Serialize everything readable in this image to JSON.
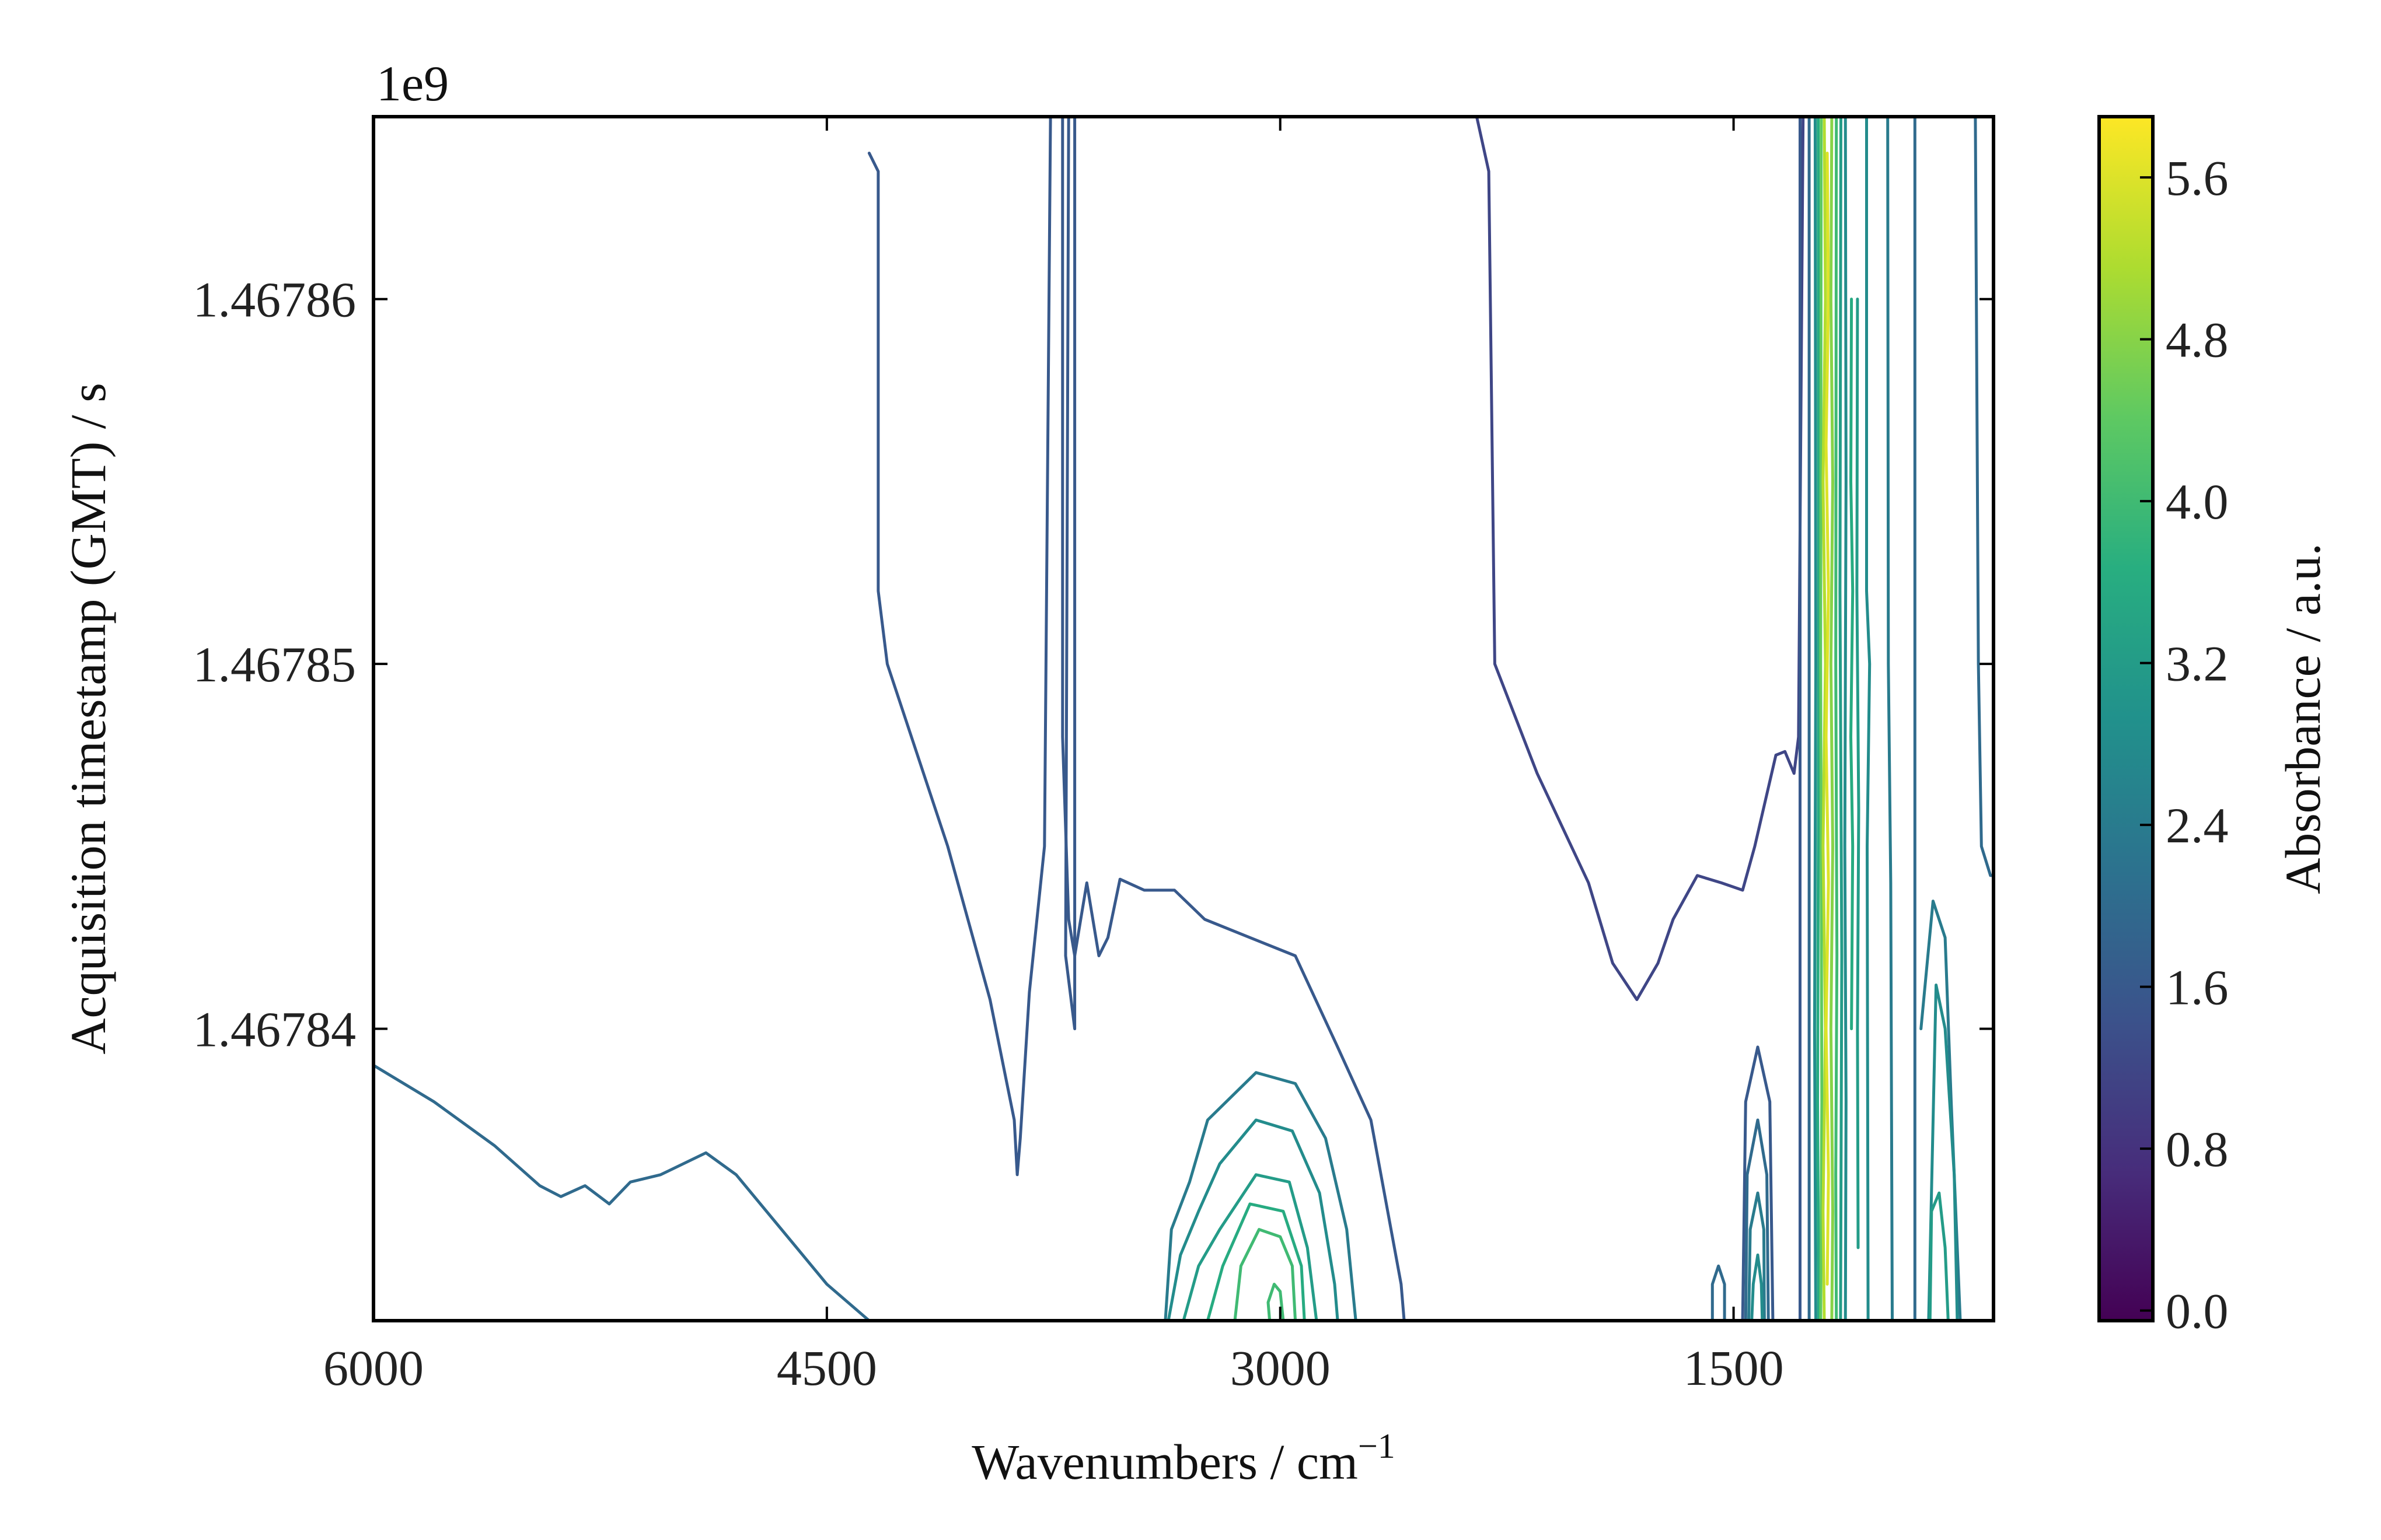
{
  "chart_data": {
    "type": "contour",
    "title": "",
    "xlabel": "Wavenumbers / cm",
    "xlabel_superscript": "−1",
    "ylabel": "Acquisition timestamp (GMT) / s",
    "y_offset_text": "1e9",
    "xlim": [
      6000,
      640
    ],
    "ylim": [
      1.467832,
      1.467865
    ],
    "x_ticks": [
      {
        "value": 6000,
        "label": "6000"
      },
      {
        "value": 4500,
        "label": "4500"
      },
      {
        "value": 3000,
        "label": "3000"
      },
      {
        "value": 1500,
        "label": "1500"
      }
    ],
    "y_ticks": [
      {
        "value": 1.46784,
        "label": "1.46784"
      },
      {
        "value": 1.46785,
        "label": "1.46785"
      },
      {
        "value": 1.46786,
        "label": "1.46786"
      }
    ],
    "colorbar": {
      "label": "Absorbance / a.u.",
      "colormap": "viridis",
      "range": [
        -0.05,
        5.9
      ],
      "ticks": [
        {
          "value": 0.0,
          "label": "0.0"
        },
        {
          "value": 0.8,
          "label": "0.8"
        },
        {
          "value": 1.6,
          "label": "1.6"
        },
        {
          "value": 2.4,
          "label": "2.4"
        },
        {
          "value": 3.2,
          "label": "3.2"
        },
        {
          "value": 4.0,
          "label": "4.0"
        },
        {
          "value": 4.8,
          "label": "4.8"
        },
        {
          "value": 5.6,
          "label": "5.6"
        }
      ]
    },
    "contours": [
      {
        "level": 2.0,
        "points": [
          [
            6000,
            1.467839
          ],
          [
            5800,
            1.467838
          ],
          [
            5600,
            1.4678368
          ],
          [
            5450,
            1.4678357
          ],
          [
            5380,
            1.4678354
          ],
          [
            5300,
            1.4678357
          ],
          [
            5220,
            1.4678352
          ],
          [
            5150,
            1.4678358
          ],
          [
            5050,
            1.467836
          ],
          [
            4900,
            1.4678366
          ],
          [
            4800,
            1.467836
          ],
          [
            4700,
            1.467835
          ],
          [
            4600,
            1.467834
          ],
          [
            4500,
            1.467833
          ],
          [
            4360,
            1.467832
          ]
        ]
      },
      {
        "level": 1.6,
        "points": [
          [
            4360,
            1.467864
          ],
          [
            4330,
            1.4678635
          ],
          [
            4330,
            1.467852
          ],
          [
            4300,
            1.46785
          ],
          [
            4100,
            1.467845
          ],
          [
            3960,
            1.4678408
          ],
          [
            3880,
            1.4678375
          ],
          [
            3870,
            1.467836
          ],
          [
            3860,
            1.467837
          ],
          [
            3830,
            1.467841
          ],
          [
            3780,
            1.467845
          ],
          [
            3760,
            1.467865
          ]
        ]
      },
      {
        "level": 1.6,
        "points": [
          [
            3720,
            1.467865
          ],
          [
            3720,
            1.467848
          ],
          [
            3700,
            1.467843
          ],
          [
            3680,
            1.467842
          ],
          [
            3660,
            1.467843
          ],
          [
            3640,
            1.467844
          ],
          [
            3600,
            1.467842
          ],
          [
            3570,
            1.4678425
          ],
          [
            3530,
            1.4678441
          ],
          [
            3450,
            1.4678438
          ],
          [
            3350,
            1.4678438
          ],
          [
            3250,
            1.467843
          ],
          [
            3100,
            1.4678425
          ],
          [
            2950,
            1.467842
          ],
          [
            2810,
            1.4678395
          ],
          [
            2700,
            1.4678375
          ],
          [
            2600,
            1.467833
          ],
          [
            2590,
            1.467832
          ]
        ]
      },
      {
        "level": 1.6,
        "points": [
          [
            3700,
            1.467865
          ],
          [
            3710,
            1.467842
          ],
          [
            3680,
            1.46784
          ],
          [
            3680,
            1.467865
          ]
        ]
      },
      {
        "level": 1.2,
        "points": [
          [
            2350,
            1.467865
          ],
          [
            2310,
            1.4678635
          ],
          [
            2290,
            1.46785
          ],
          [
            2150,
            1.467847
          ],
          [
            1980,
            1.467844
          ],
          [
            1900,
            1.4678418
          ],
          [
            1820,
            1.4678408
          ],
          [
            1750,
            1.4678418
          ],
          [
            1700,
            1.467843
          ],
          [
            1620,
            1.4678442
          ],
          [
            1540,
            1.467844
          ],
          [
            1470,
            1.4678438
          ],
          [
            1430,
            1.467845
          ],
          [
            1360,
            1.4678475
          ],
          [
            1330,
            1.4678476
          ],
          [
            1300,
            1.467847
          ],
          [
            1285,
            1.467848
          ],
          [
            1270,
            1.467865
          ]
        ]
      },
      {
        "level": 2.4,
        "points": [
          [
            3380,
            1.467832
          ],
          [
            3360,
            1.4678345
          ],
          [
            3300,
            1.4678358
          ],
          [
            3240,
            1.4678375
          ],
          [
            3080,
            1.4678388
          ],
          [
            2950,
            1.4678385
          ],
          [
            2850,
            1.467837
          ],
          [
            2780,
            1.4678345
          ],
          [
            2750,
            1.467832
          ]
        ]
      },
      {
        "level": 2.8,
        "points": [
          [
            3370,
            1.467832
          ],
          [
            3330,
            1.4678338
          ],
          [
            3270,
            1.467835
          ],
          [
            3200,
            1.4678363
          ],
          [
            3080,
            1.4678375
          ],
          [
            2960,
            1.4678372
          ],
          [
            2870,
            1.4678355
          ],
          [
            2820,
            1.467833
          ],
          [
            2810,
            1.467832
          ]
        ]
      },
      {
        "level": 3.2,
        "points": [
          [
            3320,
            1.467832
          ],
          [
            3270,
            1.4678335
          ],
          [
            3200,
            1.4678345
          ],
          [
            3080,
            1.467836
          ],
          [
            2970,
            1.4678358
          ],
          [
            2910,
            1.467834
          ],
          [
            2880,
            1.467832
          ]
        ]
      },
      {
        "level": 3.6,
        "points": [
          [
            3240,
            1.467832
          ],
          [
            3190,
            1.4678335
          ],
          [
            3100,
            1.4678352
          ],
          [
            2990,
            1.467835
          ],
          [
            2930,
            1.4678335
          ],
          [
            2920,
            1.467832
          ]
        ]
      },
      {
        "level": 4.0,
        "points": [
          [
            3150,
            1.467832
          ],
          [
            3130,
            1.4678335
          ],
          [
            3070,
            1.4678345
          ],
          [
            3000,
            1.4678343
          ],
          [
            2960,
            1.4678335
          ],
          [
            2950,
            1.467832
          ]
        ]
      },
      {
        "level": 4.0,
        "points": [
          [
            2990,
            1.467832
          ],
          [
            3000,
            1.4678328
          ],
          [
            3020,
            1.467833
          ],
          [
            3040,
            1.4678325
          ],
          [
            3035,
            1.467832
          ]
        ]
      },
      {
        "level": 2.0,
        "points": [
          [
            1570,
            1.467832
          ],
          [
            1570,
            1.467833
          ],
          [
            1550,
            1.4678335
          ],
          [
            1530,
            1.467833
          ],
          [
            1530,
            1.467832
          ]
        ]
      },
      {
        "level": 1.6,
        "points": [
          [
            1470,
            1.467832
          ],
          [
            1460,
            1.467838
          ],
          [
            1420,
            1.4678395
          ],
          [
            1380,
            1.467838
          ],
          [
            1370,
            1.467832
          ]
        ]
      },
      {
        "level": 2.0,
        "points": [
          [
            1460,
            1.467832
          ],
          [
            1455,
            1.467836
          ],
          [
            1420,
            1.4678375
          ],
          [
            1390,
            1.467836
          ],
          [
            1385,
            1.467832
          ]
        ]
      },
      {
        "level": 2.4,
        "points": [
          [
            1450,
            1.467832
          ],
          [
            1445,
            1.4678345
          ],
          [
            1420,
            1.4678355
          ],
          [
            1400,
            1.4678345
          ],
          [
            1398,
            1.467832
          ]
        ]
      },
      {
        "level": 2.8,
        "points": [
          [
            1440,
            1.467832
          ],
          [
            1435,
            1.467833
          ],
          [
            1420,
            1.4678338
          ],
          [
            1408,
            1.467833
          ],
          [
            1405,
            1.467832
          ]
        ]
      },
      {
        "level": 1.6,
        "points": [
          [
            1280,
            1.467865
          ],
          [
            1280,
            1.467832
          ]
        ]
      },
      {
        "level": 2.0,
        "points": [
          [
            1250,
            1.467865
          ],
          [
            1250,
            1.467832
          ]
        ]
      },
      {
        "level": 2.8,
        "points": [
          [
            1230,
            1.467865
          ],
          [
            1228,
            1.46785
          ],
          [
            1232,
            1.46784
          ],
          [
            1228,
            1.467832
          ]
        ]
      },
      {
        "level": 3.6,
        "points": [
          [
            1220,
            1.467865
          ],
          [
            1218,
            1.46785
          ],
          [
            1222,
            1.467838
          ],
          [
            1218,
            1.467832
          ]
        ]
      },
      {
        "level": 4.4,
        "points": [
          [
            1210,
            1.467865
          ],
          [
            1212,
            1.46785
          ],
          [
            1208,
            1.467838
          ],
          [
            1212,
            1.467832
          ]
        ]
      },
      {
        "level": 5.2,
        "points": [
          [
            1200,
            1.467865
          ],
          [
            1196,
            1.46786
          ],
          [
            1204,
            1.467855
          ],
          [
            1196,
            1.46785
          ],
          [
            1204,
            1.467845
          ],
          [
            1196,
            1.46784
          ],
          [
            1204,
            1.467835
          ],
          [
            1200,
            1.467832
          ]
        ]
      },
      {
        "level": 5.6,
        "points": [
          [
            1190,
            1.467864
          ],
          [
            1186,
            1.46786
          ],
          [
            1194,
            1.467856
          ],
          [
            1186,
            1.467852
          ],
          [
            1194,
            1.467848
          ],
          [
            1186,
            1.467844
          ],
          [
            1194,
            1.46784
          ],
          [
            1186,
            1.467836
          ],
          [
            1190,
            1.467833
          ]
        ]
      },
      {
        "level": 4.8,
        "points": [
          [
            1175,
            1.467865
          ],
          [
            1178,
            1.46786
          ],
          [
            1172,
            1.467855
          ],
          [
            1178,
            1.46785
          ],
          [
            1172,
            1.467845
          ],
          [
            1178,
            1.46784
          ],
          [
            1172,
            1.467835
          ],
          [
            1175,
            1.467832
          ]
        ]
      },
      {
        "level": 4.0,
        "points": [
          [
            1160,
            1.467865
          ],
          [
            1162,
            1.46785
          ],
          [
            1158,
            1.467842
          ],
          [
            1162,
            1.467836
          ],
          [
            1160,
            1.467832
          ]
        ]
      },
      {
        "level": 3.2,
        "points": [
          [
            1145,
            1.467865
          ],
          [
            1148,
            1.467852
          ],
          [
            1142,
            1.467842
          ],
          [
            1146,
            1.467832
          ]
        ]
      },
      {
        "level": 2.8,
        "points": [
          [
            1130,
            1.467865
          ],
          [
            1128,
            1.467855
          ],
          [
            1132,
            1.467845
          ],
          [
            1128,
            1.467838
          ],
          [
            1130,
            1.467832
          ]
        ]
      },
      {
        "level": 3.6,
        "points": [
          [
            1110,
            1.46786
          ],
          [
            1112,
            1.467855
          ],
          [
            1106,
            1.467852
          ],
          [
            1112,
            1.467848
          ],
          [
            1106,
            1.467845
          ],
          [
            1110,
            1.46784
          ]
        ]
      },
      {
        "level": 3.2,
        "points": [
          [
            1090,
            1.46786
          ],
          [
            1092,
            1.467852
          ],
          [
            1086,
            1.467846
          ],
          [
            1090,
            1.46784
          ],
          [
            1088,
            1.467834
          ]
        ]
      },
      {
        "level": 2.8,
        "points": [
          [
            1060,
            1.467865
          ],
          [
            1060,
            1.467852
          ],
          [
            1050,
            1.46785
          ],
          [
            1058,
            1.467845
          ],
          [
            1055,
            1.467832
          ]
        ]
      },
      {
        "level": 2.4,
        "points": [
          [
            990,
            1.467865
          ],
          [
            988,
            1.46785
          ],
          [
            980,
            1.467844
          ],
          [
            975,
            1.467832
          ]
        ]
      },
      {
        "level": 2.0,
        "points": [
          [
            900,
            1.467865
          ],
          [
            900,
            1.467832
          ]
        ]
      },
      {
        "level": 2.4,
        "points": [
          [
            880,
            1.46784
          ],
          [
            840,
            1.4678435
          ],
          [
            800,
            1.4678425
          ],
          [
            780,
            1.467838
          ],
          [
            760,
            1.467834
          ],
          [
            750,
            1.467832
          ]
        ]
      },
      {
        "level": 2.8,
        "points": [
          [
            860,
            1.46783
          ],
          [
            830,
            1.4678412
          ],
          [
            800,
            1.46784
          ],
          [
            770,
            1.467836
          ],
          [
            760,
            1.467832
          ]
        ]
      },
      {
        "level": 3.2,
        "points": [
          [
            850,
            1.467832
          ],
          [
            845,
            1.467835
          ],
          [
            820,
            1.4678355
          ],
          [
            800,
            1.467834
          ],
          [
            790,
            1.467832
          ]
        ]
      },
      {
        "level": 2.0,
        "points": [
          [
            700,
            1.467865
          ],
          [
            690,
            1.46785
          ],
          [
            680,
            1.467845
          ],
          [
            650,
            1.4678442
          ],
          [
            640,
            1.4678442
          ]
        ]
      }
    ]
  }
}
